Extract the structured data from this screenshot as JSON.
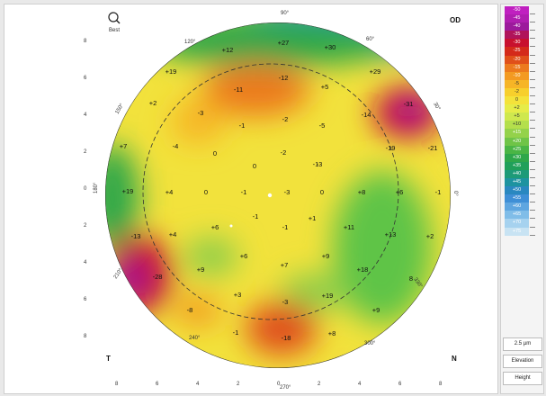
{
  "eye": "OD",
  "corner_icon": "magnifier-icon",
  "corner_label": "Best",
  "meridians": {
    "top": "90°",
    "bottom": "270°",
    "left": "180°",
    "right": "0°",
    "tl": "120°",
    "tr": "60°",
    "bl": "210°",
    "br": "330°",
    "ll": "150°",
    "lr": "30°",
    "bbl": "240°",
    "bbr": "300°",
    "ur2": "45°",
    "ul2": "135°"
  },
  "y_ticks": [
    "8",
    "6",
    "4",
    "2",
    "0",
    "2",
    "4",
    "6",
    "8"
  ],
  "x_ticks": [
    "8",
    "6",
    "4",
    "2",
    "0",
    "2",
    "4",
    "6",
    "8"
  ],
  "side_left": "T",
  "side_right": "N",
  "values": [
    {
      "t": "+12"
    },
    {
      "t": "+27"
    },
    {
      "t": "+30"
    },
    {
      "t": "+19"
    },
    {
      "t": "-11"
    },
    {
      "t": "-12"
    },
    {
      "t": "+5"
    },
    {
      "t": "+29"
    },
    {
      "t": "+2"
    },
    {
      "t": "-3"
    },
    {
      "t": "-14"
    },
    {
      "t": "-31"
    },
    {
      "t": "-1"
    },
    {
      "t": "-2"
    },
    {
      "t": "-5"
    },
    {
      "t": "+7"
    },
    {
      "t": "-4"
    },
    {
      "t": "0"
    },
    {
      "t": "-2"
    },
    {
      "t": "-1"
    },
    {
      "t": "-19"
    },
    {
      "t": "-21"
    },
    {
      "t": "0"
    },
    {
      "t": "-3"
    },
    {
      "t": "+19"
    },
    {
      "t": "+4"
    },
    {
      "t": "0"
    },
    {
      "t": "-1"
    },
    {
      "t": "-3"
    },
    {
      "t": "0"
    },
    {
      "t": "+8"
    },
    {
      "t": "+6"
    },
    {
      "t": "-1"
    },
    {
      "t": "-1"
    },
    {
      "t": "+1"
    },
    {
      "t": "+6"
    },
    {
      "t": "-1"
    },
    {
      "t": "+11"
    },
    {
      "t": "+13"
    },
    {
      "t": "+2"
    },
    {
      "t": "+4"
    },
    {
      "t": "-13"
    },
    {
      "t": "+6"
    },
    {
      "t": "+9"
    },
    {
      "t": "+7"
    },
    {
      "t": "+9"
    },
    {
      "t": "+18"
    },
    {
      "t": "-28"
    },
    {
      "t": "8"
    },
    {
      "t": "+3"
    },
    {
      "t": "-3"
    },
    {
      "t": "+19"
    },
    {
      "t": "-8"
    },
    {
      "t": "+9"
    },
    {
      "t": "-1"
    },
    {
      "t": "-18"
    },
    {
      "t": "+8"
    }
  ],
  "scale": {
    "colors": [
      "#c020c0",
      "#b01eb0",
      "#9c1a9c",
      "#b0145a",
      "#c8102e",
      "#d42a1a",
      "#e0501a",
      "#ec7a1e",
      "#f39a22",
      "#f6b526",
      "#f7cf2c",
      "#f4e23a",
      "#e6ec48",
      "#cfe84e",
      "#b4df4c",
      "#94d24a",
      "#6fc447",
      "#4ab545",
      "#2ea74a",
      "#20a05a",
      "#1d9a78",
      "#1e93a0",
      "#2a88c0",
      "#3f8fd6",
      "#5fa6e0",
      "#80bde8",
      "#a6d2ef",
      "#c8e3f3"
    ],
    "labels": [
      "-50",
      "-45",
      "-40",
      "-35",
      "-30",
      "-25",
      "-20",
      "-15",
      "-10",
      "-5",
      "-2",
      "0",
      "+2",
      "+5",
      "+10",
      "+15",
      "+20",
      "+25",
      "+30",
      "+35",
      "+40",
      "+45",
      "+50",
      "+55",
      "+60",
      "+65",
      "+70",
      "+75"
    ],
    "step": "2.5 µm",
    "mode1": "Elevation",
    "mode2": "Height"
  }
}
